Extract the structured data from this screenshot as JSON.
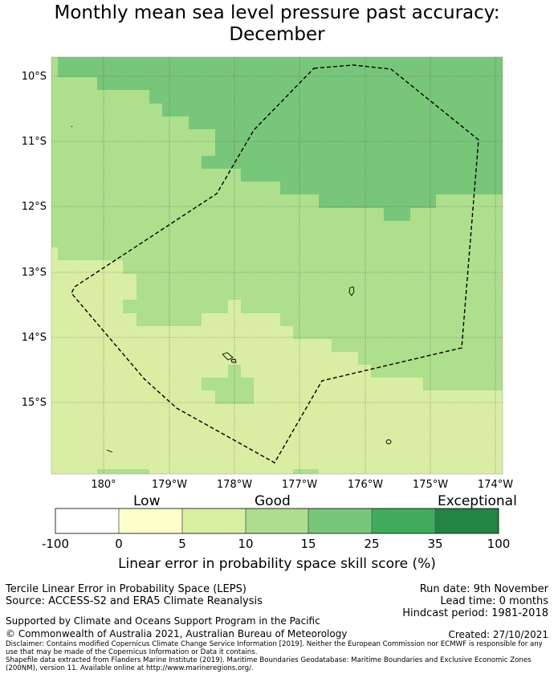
{
  "title_line1": "Monthly mean sea level pressure past accuracy:",
  "title_line2": "December",
  "colors": {
    "low_band": "#d9eea3",
    "mid_band": "#addf8d",
    "high_band": "#78c67a",
    "cb_0": "#ffffff",
    "cb_1": "#ffffcc",
    "cb_2": "#d9f0a3",
    "cb_3": "#addd8e",
    "cb_4": "#78c679",
    "cb_5": "#41ab5d",
    "cb_6": "#238443"
  },
  "map": {
    "lat_labels": [
      "10°S",
      "11°S",
      "12°S",
      "13°S",
      "14°S",
      "15°S"
    ],
    "lon_labels": [
      "180°",
      "179°W",
      "178°W",
      "177°W",
      "176°W",
      "175°W",
      "174°W"
    ],
    "boundary_name": "Exclusive Economic Zone (200NM)"
  },
  "colorbar": {
    "category_labels": [
      "Low",
      "Good",
      "Exceptional"
    ],
    "ticks": [
      "-100",
      "0",
      "5",
      "10",
      "15",
      "25",
      "35",
      "100"
    ],
    "title": "Linear error in probability space skill score (%)"
  },
  "info": {
    "line1": "Tercile Linear Error in Probability Space (LEPS)",
    "line2": "Source: ACCESS-S2 and ERA5 Climate Reanalysis",
    "run_date": "Run date: 9th November",
    "lead_time": "Lead time: 0 months",
    "hindcast": "Hindcast period: 1981-2018",
    "support": "Supported by Climate and Oceans Support Program in the Pacific",
    "copyright": "© Commonwealth of Australia 2021, Australian Bureau of Meteorology",
    "created": "Created: 27/10/2021",
    "disclaimer": "Disclaimer: Contains modified Copernicus Climate Change Service Information [2019]. Neither the European Commission nor ECMWF is responsible for any use that may be made of the Copernicus Information or Data it contains.",
    "shapefile": "Shapefile data extracted from Flanders Marine Institute (2019). Maritime Boundaries Geodatabase: Maritime Boundaries and Exclusive Economic Zones (200NM), version 11. Available online at http://www.marineregions.org/."
  }
}
